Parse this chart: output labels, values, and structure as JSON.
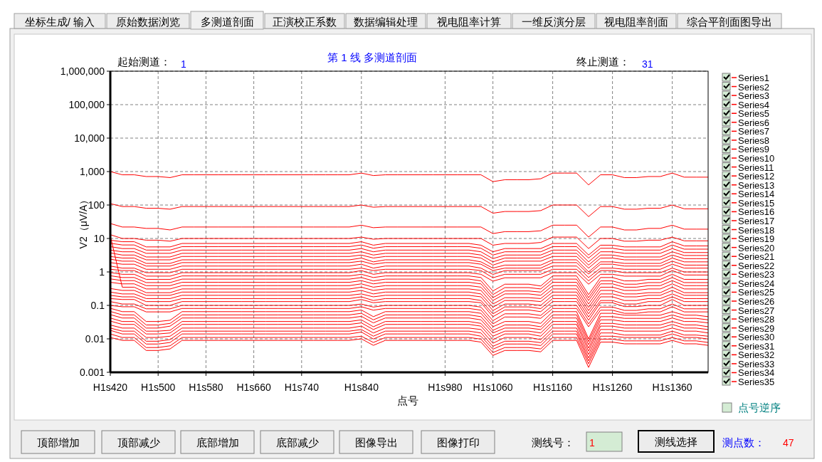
{
  "chart_data": {
    "type": "line",
    "title": "第 1 线  多测道剖面",
    "xlabel": "点号",
    "ylabel": "V2（μV/A）",
    "log": "y",
    "grid": true,
    "legend": "right",
    "annotations": [
      "坐标生成/ 输入",
      "原始数据浏览",
      "多测道剖面",
      "正演校正系数",
      "数据编辑处理",
      "视电阻率计算",
      "一维反演分层",
      "视电阻率剖面",
      "综合平剖面图导出",
      "顶部增加",
      "顶部减少",
      "底部增加",
      "底部减少",
      "图像导出",
      "图像打印",
      "起始测道：",
      "1",
      "终止测道：",
      "31",
      "点号逆序",
      "测线号：",
      "1",
      "测线选择",
      "测点数：",
      "47"
    ],
    "categories": [
      "H1s420",
      null,
      null,
      null,
      "H1s500",
      null,
      null,
      null,
      "H1s580",
      null,
      null,
      null,
      "H1s660",
      null,
      null,
      null,
      "H1s740",
      null,
      null,
      null,
      null,
      "H1s840",
      null,
      null,
      null,
      null,
      null,
      null,
      "H1s980",
      null,
      null,
      null,
      "H1s1060",
      null,
      null,
      null,
      null,
      "H1s1160",
      null,
      null,
      null,
      null,
      "H1s1260",
      null,
      null,
      null,
      null,
      "H1s1360",
      null,
      null,
      null
    ],
    "ylim": [
      0.001,
      1000000
    ],
    "yticks": [
      0.001,
      0.01,
      0.1,
      1,
      10,
      100,
      {
        "value": 1000,
        "label": "1,000"
      },
      {
        "value": 10000,
        "label": "10,000"
      },
      {
        "value": 100000,
        "label": "100,000"
      },
      {
        "value": 1000000,
        "label": "1,000,000"
      }
    ],
    "series": [
      {
        "name": "Series1",
        "color": "#ff0000",
        "values": [
          1000,
          800,
          800,
          710,
          710,
          660,
          800,
          800,
          800,
          800,
          800,
          800,
          800,
          800,
          800,
          800,
          800,
          800,
          800,
          800,
          800,
          900,
          760,
          800,
          800,
          800,
          800,
          800,
          800,
          800,
          800,
          800,
          500,
          570,
          570,
          570,
          610,
          900,
          900,
          900,
          400,
          800,
          800,
          660,
          660,
          710,
          710,
          900,
          680,
          680,
          680
        ]
      },
      {
        "name": "Series2",
        "color": "#ff0000",
        "values": [
          110,
          90,
          90,
          80,
          80,
          75,
          90,
          90,
          90,
          90,
          90,
          90,
          90,
          90,
          90,
          90,
          90,
          90,
          90,
          90,
          90,
          100,
          86,
          90,
          90,
          90,
          90,
          90,
          90,
          90,
          90,
          90,
          57,
          64,
          64,
          64,
          68,
          100,
          100,
          100,
          45,
          90,
          90,
          75,
          75,
          80,
          80,
          100,
          77,
          77,
          77
        ]
      },
      {
        "name": "Series3",
        "color": "#ff0000",
        "values": [
          28,
          22,
          22,
          20,
          20,
          18,
          22,
          22,
          22,
          22,
          22,
          22,
          22,
          22,
          22,
          22,
          22,
          22,
          22,
          22,
          22,
          25,
          21,
          22,
          22,
          22,
          22,
          22,
          22,
          22,
          22,
          22,
          14,
          16,
          16,
          16,
          17,
          25,
          25,
          25,
          11,
          22,
          22,
          18,
          18,
          20,
          20,
          25,
          19,
          19,
          19
        ]
      },
      {
        "name": "Series4",
        "color": "#ff0000",
        "values": [
          13,
          10,
          10,
          8.9,
          8.9,
          8.3,
          10,
          10,
          10,
          10,
          10,
          10,
          10,
          10,
          10,
          10,
          10,
          10,
          10,
          10,
          10,
          11,
          9.5,
          10,
          10,
          10,
          10,
          10,
          10,
          10,
          10,
          10,
          6.3,
          7.1,
          7.1,
          7.1,
          7.6,
          11,
          11,
          11,
          5,
          10,
          10,
          8.3,
          8.3,
          8.9,
          8.9,
          11,
          8.5,
          8.5,
          8.5
        ]
      },
      {
        "name": "Series5",
        "color": "#ff0000",
        "values": [
          8.9,
          8,
          8,
          5.6,
          5.6,
          5.6,
          7.1,
          7.1,
          7.1,
          7.1,
          7.1,
          7.1,
          7.1,
          7.1,
          7.1,
          7.1,
          7.1,
          7.1,
          7.1,
          7.1,
          7.1,
          8,
          6.3,
          7.1,
          7.1,
          7.1,
          7.1,
          7.1,
          7.1,
          7.1,
          7.1,
          6.3,
          4,
          5,
          5,
          5,
          5,
          7.1,
          7.1,
          7.1,
          3.2,
          6.3,
          6.3,
          5.6,
          5.6,
          5.6,
          5.6,
          8,
          6,
          6,
          6
        ]
      },
      {
        "name": "Series6",
        "color": "#ff0000",
        "values": [
          7.2,
          6.4,
          6.4,
          4.5,
          4.5,
          4.5,
          5.7,
          5.7,
          5.7,
          5.7,
          5.7,
          5.7,
          5.7,
          5.7,
          5.7,
          5.7,
          5.7,
          5.7,
          5.7,
          5.7,
          5.7,
          6.4,
          5.1,
          5.7,
          5.7,
          5.7,
          5.7,
          5.7,
          5.7,
          5.7,
          5.7,
          5.1,
          3.2,
          4,
          4,
          4,
          4,
          5.7,
          5.7,
          5.7,
          2.6,
          5.1,
          5.1,
          4.5,
          4.5,
          4.5,
          4.5,
          6.4,
          4.8,
          4.8,
          4.8
        ]
      },
      {
        "name": "Series7",
        "color": "#ff0000",
        "values": [
          5.7,
          5,
          5,
          3.6,
          3.6,
          3.6,
          4.5,
          4.5,
          4.5,
          4.5,
          4.5,
          4.5,
          4.5,
          4.5,
          4.5,
          4.5,
          4.5,
          4.5,
          4.5,
          4.5,
          4.5,
          5,
          4,
          4.5,
          4.5,
          4.5,
          4.5,
          4.5,
          4.5,
          4.5,
          4.5,
          4,
          2.5,
          3.2,
          3.2,
          3.2,
          3.2,
          4.5,
          4.5,
          4.5,
          2,
          4,
          4,
          3.6,
          3.6,
          3.6,
          3.6,
          5,
          3.8,
          3.8,
          3.8
        ]
      },
      {
        "name": "Series8",
        "color": "#ff0000",
        "values": [
          4.5,
          4,
          4,
          2.8,
          2.8,
          2.8,
          3.6,
          3.6,
          3.6,
          3.6,
          3.6,
          3.6,
          3.6,
          3.6,
          3.6,
          3.6,
          3.6,
          3.6,
          3.6,
          3.6,
          3.6,
          4,
          3.2,
          3.6,
          3.6,
          3.6,
          3.6,
          3.6,
          3.6,
          3.6,
          3.6,
          3.2,
          2,
          2.6,
          2.6,
          2.6,
          2.6,
          3.6,
          3.6,
          3.6,
          1.6,
          3.2,
          3.2,
          2.8,
          2.8,
          2.8,
          2.8,
          4,
          3.1,
          3.1,
          3.1
        ]
      },
      {
        "name": "Series9",
        "color": "#ff0000",
        "values": [
          3.7,
          3.2,
          3.2,
          2.3,
          2.3,
          2.3,
          2.9,
          2.9,
          2.9,
          2.9,
          2.9,
          2.9,
          2.9,
          2.9,
          2.9,
          2.9,
          2.9,
          2.9,
          2.9,
          2.9,
          2.9,
          3.2,
          2.6,
          2.9,
          2.9,
          2.9,
          2.9,
          2.9,
          2.9,
          2.9,
          2.9,
          2.6,
          1.6,
          2.1,
          2.1,
          2.1,
          2.1,
          2.9,
          2.9,
          2.9,
          1.3,
          2.6,
          2.6,
          2.3,
          2.3,
          2.3,
          2.3,
          3.2,
          2.5,
          2.5,
          2.5
        ]
      },
      {
        "name": "Series10",
        "color": "#ff0000",
        "values": [
          2.9,
          2.6,
          2.6,
          1.8,
          1.8,
          1.8,
          2.3,
          2.3,
          2.3,
          2.3,
          2.3,
          2.3,
          2.3,
          2.3,
          2.3,
          2.3,
          2.3,
          2.3,
          2.3,
          2.3,
          2.3,
          2.6,
          2,
          2.3,
          2.3,
          2.3,
          2.3,
          2.3,
          2.3,
          2.3,
          2.3,
          2,
          1.3,
          1.6,
          1.6,
          1.6,
          1.6,
          2.3,
          2.3,
          2.3,
          1,
          2,
          2,
          1.8,
          1.8,
          1.8,
          1.8,
          2.6,
          2,
          2,
          2
        ]
      },
      {
        "name": "Series11",
        "color": "#ff0000",
        "values": [
          2.4,
          2.1,
          2.1,
          1.5,
          1.5,
          1.5,
          1.9,
          1.9,
          1.9,
          1.9,
          1.9,
          1.9,
          1.9,
          1.9,
          1.9,
          1.9,
          1.9,
          1.9,
          1.9,
          1.9,
          1.9,
          2.1,
          1.7,
          1.9,
          1.9,
          1.9,
          1.9,
          1.9,
          1.9,
          1.9,
          1.9,
          1.7,
          1.1,
          1.3,
          1.3,
          1.3,
          1.3,
          1.9,
          1.9,
          1.9,
          0.86,
          1.7,
          1.7,
          1.5,
          1.5,
          1.5,
          1.5,
          2.1,
          1.6,
          1.6,
          1.6
        ]
      },
      {
        "name": "Series12",
        "color": "#ff0000",
        "values": [
          1.9,
          1.7,
          1.7,
          1.2,
          1.2,
          1.2,
          1.5,
          1.5,
          1.5,
          1.5,
          1.5,
          1.5,
          1.5,
          1.5,
          1.5,
          1.5,
          1.5,
          1.5,
          1.5,
          1.5,
          1.5,
          1.7,
          1.3,
          1.5,
          1.5,
          1.5,
          1.5,
          1.5,
          1.5,
          1.5,
          1.5,
          1.3,
          0.84,
          1.1,
          1.1,
          1.1,
          1.1,
          1.5,
          1.5,
          1.5,
          0.68,
          1.3,
          1.3,
          1.2,
          1.2,
          1.2,
          1.2,
          1.7,
          1.3,
          1.3,
          1.3
        ]
      },
      {
        "name": "Series13",
        "color": "#ff0000",
        "values": [
          1.5,
          1.3,
          1.3,
          0.95,
          0.95,
          0.95,
          1.2,
          1.2,
          1.2,
          1.2,
          1.2,
          1.2,
          1.2,
          1.2,
          1.2,
          1.2,
          1.2,
          1.2,
          1.2,
          1.2,
          1.2,
          1.3,
          1.1,
          1.2,
          1.2,
          1.2,
          1.2,
          1.2,
          1.2,
          1.2,
          1.2,
          1.1,
          0.67,
          0.85,
          0.85,
          0.85,
          0.85,
          1.2,
          1.2,
          1.2,
          0.54,
          1.1,
          1.1,
          0.95,
          0.95,
          0.95,
          0.95,
          1.3,
          1,
          1,
          1
        ]
      },
      {
        "name": "Series14",
        "color": "#ff0000",
        "values": [
          1.2,
          1.1,
          1.1,
          0.75,
          0.75,
          0.75,
          0.95,
          0.95,
          0.95,
          0.95,
          0.95,
          0.95,
          0.95,
          0.95,
          0.95,
          0.95,
          0.95,
          0.95,
          0.95,
          0.95,
          0.95,
          1.1,
          0.85,
          0.95,
          0.95,
          0.95,
          0.95,
          0.95,
          0.95,
          0.95,
          0.95,
          0.85,
          0.53,
          0.67,
          0.67,
          0.67,
          0.67,
          0.95,
          0.95,
          0.95,
          0.43,
          0.85,
          0.85,
          0.75,
          0.75,
          0.75,
          0.75,
          1.1,
          0.81,
          0.81,
          0.81
        ]
      },
      {
        "name": "Series15",
        "color": "#ff0000",
        "values": [
          0.96,
          0.85,
          0.85,
          0.6,
          0.6,
          0.6,
          0.76,
          0.76,
          0.76,
          0.76,
          0.76,
          0.76,
          0.76,
          0.76,
          0.76,
          0.76,
          0.76,
          0.76,
          0.76,
          0.76,
          0.76,
          0.85,
          0.68,
          0.76,
          0.76,
          0.76,
          0.76,
          0.76,
          0.76,
          0.76,
          0.76,
          0.68,
          0.27,
          0.43,
          0.43,
          0.43,
          0.38,
          0.76,
          0.76,
          0.76,
          0.21,
          0.68,
          0.68,
          0.54,
          0.54,
          0.6,
          0.6,
          0.85,
          0.6,
          0.6,
          0.6
        ]
      },
      {
        "name": "Series16",
        "color": "#ff0000",
        "values": [
          0.77,
          0.68,
          0.68,
          0.48,
          0.48,
          0.48,
          0.61,
          0.61,
          0.61,
          0.61,
          0.61,
          0.61,
          0.61,
          0.61,
          0.61,
          0.61,
          0.61,
          0.61,
          0.61,
          0.61,
          0.61,
          0.68,
          0.54,
          0.61,
          0.61,
          0.61,
          0.61,
          0.61,
          0.61,
          0.61,
          0.61,
          0.54,
          0.21,
          0.34,
          0.34,
          0.34,
          0.31,
          0.61,
          0.61,
          0.61,
          0.17,
          0.54,
          0.54,
          0.43,
          0.43,
          0.48,
          0.48,
          0.68,
          0.48,
          0.48,
          0.48
        ]
      },
      {
        "name": "Series17",
        "color": "#ff0000",
        "values": [
          0.62,
          0.55,
          0.55,
          0.39,
          0.39,
          0.39,
          0.49,
          0.49,
          0.49,
          0.49,
          0.49,
          0.49,
          0.49,
          0.49,
          0.49,
          0.49,
          0.49,
          0.49,
          0.49,
          0.49,
          0.49,
          0.55,
          0.44,
          0.49,
          0.49,
          0.49,
          0.49,
          0.49,
          0.49,
          0.49,
          0.49,
          0.44,
          0.17,
          0.27,
          0.27,
          0.27,
          0.25,
          0.49,
          0.49,
          0.49,
          0.14,
          0.44,
          0.44,
          0.35,
          0.35,
          0.39,
          0.39,
          0.55,
          0.39,
          0.39,
          0.39
        ]
      },
      {
        "name": "Series18",
        "color": "#ff0000",
        "values": [
          0.49,
          0.44,
          0.44,
          0.31,
          0.31,
          0.31,
          0.39,
          0.39,
          0.39,
          0.39,
          0.39,
          0.39,
          0.39,
          0.39,
          0.39,
          0.39,
          0.39,
          0.39,
          0.39,
          0.39,
          0.39,
          0.44,
          0.35,
          0.39,
          0.39,
          0.39,
          0.39,
          0.39,
          0.39,
          0.39,
          0.39,
          0.35,
          0.14,
          0.22,
          0.22,
          0.22,
          0.2,
          0.39,
          0.39,
          0.39,
          0.11,
          0.35,
          0.35,
          0.28,
          0.28,
          0.31,
          0.31,
          0.44,
          0.31,
          0.31,
          0.31
        ]
      },
      {
        "name": "Series19",
        "color": "#ff0000",
        "values": [
          12,
          0.35,
          0.35,
          0.24,
          0.24,
          0.24,
          0.31,
          0.31,
          0.31,
          0.31,
          0.31,
          0.31,
          0.31,
          0.31,
          0.31,
          0.31,
          0.31,
          0.31,
          0.31,
          0.31,
          0.31,
          0.35,
          0.28,
          0.31,
          0.31,
          0.31,
          0.31,
          0.31,
          0.31,
          0.31,
          0.31,
          0.28,
          0.11,
          0.17,
          0.17,
          0.17,
          0.16,
          0.31,
          0.31,
          0.31,
          0.087,
          0.28,
          0.28,
          0.22,
          0.22,
          0.24,
          0.24,
          0.35,
          0.24,
          0.24,
          0.24
        ]
      },
      {
        "name": "Series20",
        "color": "#ff0000",
        "values": [
          0.32,
          0.28,
          0.28,
          0.2,
          0.2,
          0.2,
          0.25,
          0.25,
          0.25,
          0.25,
          0.25,
          0.25,
          0.25,
          0.25,
          0.25,
          0.25,
          0.25,
          0.25,
          0.25,
          0.25,
          0.25,
          0.28,
          0.22,
          0.25,
          0.25,
          0.25,
          0.25,
          0.25,
          0.25,
          0.25,
          0.25,
          0.22,
          0.088,
          0.14,
          0.14,
          0.14,
          0.13,
          0.25,
          0.25,
          0.25,
          0.07,
          0.22,
          0.22,
          0.18,
          0.18,
          0.2,
          0.2,
          0.28,
          0.2,
          0.2,
          0.2
        ]
      },
      {
        "name": "Series21",
        "color": "#ff0000",
        "values": [
          0.25,
          0.22,
          0.22,
          0.16,
          0.16,
          0.16,
          0.2,
          0.2,
          0.2,
          0.2,
          0.2,
          0.2,
          0.2,
          0.2,
          0.2,
          0.2,
          0.2,
          0.2,
          0.2,
          0.2,
          0.2,
          0.22,
          0.18,
          0.2,
          0.2,
          0.2,
          0.2,
          0.2,
          0.2,
          0.2,
          0.2,
          0.18,
          0.07,
          0.11,
          0.11,
          0.11,
          0.1,
          0.2,
          0.2,
          0.2,
          0.056,
          0.18,
          0.18,
          0.14,
          0.14,
          0.16,
          0.16,
          0.22,
          0.16,
          0.16,
          0.16
        ]
      },
      {
        "name": "Series22",
        "color": "#ff0000",
        "values": [
          0.2,
          0.18,
          0.18,
          0.13,
          0.13,
          0.13,
          0.16,
          0.16,
          0.16,
          0.16,
          0.16,
          0.16,
          0.16,
          0.16,
          0.16,
          0.16,
          0.16,
          0.16,
          0.16,
          0.16,
          0.16,
          0.18,
          0.14,
          0.16,
          0.16,
          0.16,
          0.16,
          0.16,
          0.16,
          0.16,
          0.16,
          0.14,
          0.056,
          0.09,
          0.09,
          0.09,
          0.08,
          0.16,
          0.16,
          0.16,
          0.045,
          0.14,
          0.14,
          0.11,
          0.11,
          0.13,
          0.13,
          0.18,
          0.13,
          0.13,
          0.13
        ]
      },
      {
        "name": "Series23",
        "color": "#ff0000",
        "values": [
          0.16,
          0.15,
          0.15,
          0.1,
          0.1,
          0.1,
          0.13,
          0.13,
          0.13,
          0.13,
          0.13,
          0.13,
          0.13,
          0.13,
          0.13,
          0.13,
          0.13,
          0.13,
          0.13,
          0.13,
          0.13,
          0.15,
          0.12,
          0.13,
          0.13,
          0.13,
          0.13,
          0.13,
          0.13,
          0.13,
          0.13,
          0.12,
          0.046,
          0.073,
          0.073,
          0.073,
          0.065,
          0.13,
          0.13,
          0.13,
          0.036,
          0.12,
          0.12,
          0.092,
          0.092,
          0.1,
          0.1,
          0.15,
          0.1,
          0.1,
          0.1
        ]
      },
      {
        "name": "Series24",
        "color": "#ff0000",
        "values": [
          0.13,
          0.11,
          0.11,
          0.079,
          0.079,
          0.079,
          0.1,
          0.1,
          0.1,
          0.1,
          0.1,
          0.1,
          0.1,
          0.1,
          0.1,
          0.1,
          0.1,
          0.1,
          0.1,
          0.1,
          0.1,
          0.11,
          0.089,
          0.1,
          0.1,
          0.1,
          0.1,
          0.1,
          0.1,
          0.1,
          0.1,
          0.089,
          0.035,
          0.056,
          0.056,
          0.056,
          0.05,
          0.1,
          0.1,
          0.1,
          0.028,
          0.089,
          0.089,
          0.071,
          0.071,
          0.079,
          0.079,
          0.11,
          0.079,
          0.079,
          0.079
        ]
      },
      {
        "name": "Series25",
        "color": "#ff0000",
        "values": [
          0.1,
          0.091,
          0.091,
          0.064,
          0.064,
          0.064,
          0.081,
          0.081,
          0.081,
          0.081,
          0.081,
          0.081,
          0.081,
          0.081,
          0.081,
          0.081,
          0.081,
          0.081,
          0.081,
          0.081,
          0.081,
          0.091,
          0.072,
          0.081,
          0.081,
          0.081,
          0.081,
          0.081,
          0.081,
          0.081,
          0.081,
          0.072,
          0.028,
          0.045,
          0.045,
          0.045,
          0.041,
          0.081,
          0.081,
          0.081,
          0.023,
          0.072,
          0.072,
          0.058,
          0.058,
          0.064,
          0.064,
          0.091,
          0.064,
          0.064,
          0.064
        ]
      },
      {
        "name": "Series26",
        "color": "#ff0000",
        "values": [
          0.082,
          0.065,
          0.065,
          0.033,
          0.033,
          0.036,
          0.065,
          0.065,
          0.065,
          0.065,
          0.065,
          0.065,
          0.065,
          0.065,
          0.065,
          0.065,
          0.065,
          0.065,
          0.065,
          0.065,
          0.065,
          0.073,
          0.046,
          0.065,
          0.065,
          0.065,
          0.065,
          0.065,
          0.065,
          0.065,
          0.065,
          0.058,
          0.023,
          0.033,
          0.033,
          0.033,
          0.029,
          0.065,
          0.065,
          0.065,
          0.01,
          0.058,
          0.058,
          0.051,
          0.051,
          0.051,
          0.051,
          0.065,
          0.051,
          0.051,
          0.046
        ]
      },
      {
        "name": "Series27",
        "color": "#ff0000",
        "values": [
          0.066,
          0.052,
          0.052,
          0.026,
          0.026,
          0.029,
          0.052,
          0.052,
          0.052,
          0.052,
          0.052,
          0.052,
          0.052,
          0.052,
          0.052,
          0.052,
          0.052,
          0.052,
          0.052,
          0.052,
          0.052,
          0.058,
          0.037,
          0.052,
          0.052,
          0.052,
          0.052,
          0.052,
          0.052,
          0.052,
          0.052,
          0.046,
          0.018,
          0.026,
          0.026,
          0.026,
          0.023,
          0.052,
          0.052,
          0.052,
          0.0083,
          0.046,
          0.046,
          0.041,
          0.041,
          0.041,
          0.041,
          0.052,
          0.041,
          0.041,
          0.037
        ]
      },
      {
        "name": "Series28",
        "color": "#ff0000",
        "values": [
          0.053,
          0.042,
          0.042,
          0.021,
          0.021,
          0.024,
          0.042,
          0.042,
          0.042,
          0.042,
          0.042,
          0.042,
          0.042,
          0.042,
          0.042,
          0.042,
          0.042,
          0.042,
          0.042,
          0.042,
          0.042,
          0.047,
          0.03,
          0.042,
          0.042,
          0.042,
          0.042,
          0.042,
          0.042,
          0.042,
          0.042,
          0.037,
          0.015,
          0.021,
          0.021,
          0.021,
          0.019,
          0.042,
          0.042,
          0.042,
          0.0067,
          0.037,
          0.037,
          0.033,
          0.033,
          0.033,
          0.033,
          0.042,
          0.033,
          0.033,
          0.03
        ]
      },
      {
        "name": "Series29",
        "color": "#ff0000",
        "values": [
          0.042,
          0.033,
          0.033,
          0.017,
          0.017,
          0.018,
          0.033,
          0.033,
          0.033,
          0.033,
          0.033,
          0.033,
          0.033,
          0.033,
          0.033,
          0.033,
          0.033,
          0.033,
          0.033,
          0.033,
          0.033,
          0.037,
          0.023,
          0.033,
          0.033,
          0.033,
          0.033,
          0.033,
          0.033,
          0.033,
          0.033,
          0.029,
          0.012,
          0.017,
          0.017,
          0.017,
          0.015,
          0.033,
          0.033,
          0.033,
          0.0053,
          0.029,
          0.029,
          0.026,
          0.026,
          0.026,
          0.026,
          0.033,
          0.026,
          0.026,
          0.023
        ]
      },
      {
        "name": "Series30",
        "color": "#ff0000",
        "values": [
          0.034,
          0.027,
          0.027,
          0.014,
          0.014,
          0.015,
          0.027,
          0.027,
          0.027,
          0.027,
          0.027,
          0.027,
          0.027,
          0.027,
          0.027,
          0.027,
          0.027,
          0.027,
          0.027,
          0.027,
          0.027,
          0.03,
          0.019,
          0.027,
          0.027,
          0.027,
          0.027,
          0.027,
          0.027,
          0.027,
          0.027,
          0.024,
          0.0095,
          0.014,
          0.014,
          0.014,
          0.012,
          0.027,
          0.027,
          0.027,
          0.0043,
          0.024,
          0.024,
          0.021,
          0.021,
          0.021,
          0.021,
          0.027,
          0.021,
          0.021,
          0.019
        ]
      },
      {
        "name": "Series31",
        "color": "#ff0000",
        "values": [
          0.026,
          0.021,
          0.021,
          0.011,
          0.011,
          0.012,
          0.021,
          0.021,
          0.021,
          0.021,
          0.021,
          0.021,
          0.021,
          0.021,
          0.021,
          0.021,
          0.021,
          0.021,
          0.021,
          0.021,
          0.021,
          0.024,
          0.015,
          0.021,
          0.021,
          0.021,
          0.021,
          0.021,
          0.021,
          0.021,
          0.021,
          0.019,
          0.0074,
          0.011,
          0.011,
          0.011,
          0.0095,
          0.021,
          0.021,
          0.021,
          0.0034,
          0.019,
          0.019,
          0.017,
          0.017,
          0.017,
          0.017,
          0.021,
          0.017,
          0.017,
          0.015
        ]
      },
      {
        "name": "Series32",
        "color": "#ff0000",
        "values": [
          0.021,
          0.017,
          0.017,
          0.0085,
          0.0085,
          0.0095,
          0.017,
          0.017,
          0.017,
          0.017,
          0.017,
          0.017,
          0.017,
          0.017,
          0.017,
          0.017,
          0.017,
          0.017,
          0.017,
          0.017,
          0.017,
          0.019,
          0.012,
          0.017,
          0.017,
          0.017,
          0.017,
          0.017,
          0.017,
          0.017,
          0.017,
          0.015,
          0.006,
          0.0085,
          0.0085,
          0.0085,
          0.0077,
          0.017,
          0.017,
          0.017,
          0.0027,
          0.015,
          0.015,
          0.013,
          0.013,
          0.013,
          0.013,
          0.017,
          0.013,
          0.013,
          0.012
        ]
      },
      {
        "name": "Series33",
        "color": "#ff0000",
        "values": [
          0.018,
          0.014,
          0.014,
          0.007,
          0.007,
          0.0078,
          0.014,
          0.014,
          0.014,
          0.014,
          0.014,
          0.014,
          0.014,
          0.014,
          0.014,
          0.014,
          0.014,
          0.014,
          0.014,
          0.014,
          0.014,
          0.016,
          0.0099,
          0.014,
          0.014,
          0.014,
          0.014,
          0.014,
          0.014,
          0.014,
          0.014,
          0.012,
          0.0049,
          0.007,
          0.007,
          0.007,
          0.0063,
          0.014,
          0.014,
          0.014,
          0.0022,
          0.012,
          0.012,
          0.011,
          0.011,
          0.011,
          0.011,
          0.014,
          0.011,
          0.011,
          0.0099
        ]
      },
      {
        "name": "Series34",
        "color": "#ff0000",
        "values": [
          0.014,
          0.011,
          0.011,
          0.0055,
          0.0055,
          0.0062,
          0.011,
          0.011,
          0.011,
          0.011,
          0.011,
          0.011,
          0.011,
          0.011,
          0.011,
          0.011,
          0.011,
          0.011,
          0.011,
          0.011,
          0.011,
          0.012,
          0.0078,
          0.011,
          0.011,
          0.011,
          0.011,
          0.011,
          0.011,
          0.011,
          0.011,
          0.0098,
          0.0039,
          0.0055,
          0.0055,
          0.0055,
          0.005,
          0.011,
          0.011,
          0.011,
          0.0018,
          0.0098,
          0.0098,
          0.0087,
          0.0087,
          0.0087,
          0.0087,
          0.011,
          0.0087,
          0.0087,
          0.0078
        ]
      },
      {
        "name": "Series35",
        "color": "#ff0000",
        "values": [
          0.011,
          0.009,
          0.009,
          0.0045,
          0.0045,
          0.005,
          0.009,
          0.009,
          0.009,
          0.009,
          0.009,
          0.009,
          0.009,
          0.009,
          0.009,
          0.009,
          0.009,
          0.009,
          0.009,
          0.009,
          0.009,
          0.01,
          0.0064,
          0.009,
          0.009,
          0.009,
          0.009,
          0.009,
          0.009,
          0.009,
          0.009,
          0.008,
          0.0032,
          0.0045,
          0.0045,
          0.0045,
          0.0041,
          0.009,
          0.009,
          0.009,
          0.0014,
          0.008,
          0.008,
          0.0071,
          0.0071,
          0.0071,
          0.0071,
          0.009,
          0.0071,
          0.0071,
          0.0064
        ]
      }
    ]
  }
}
